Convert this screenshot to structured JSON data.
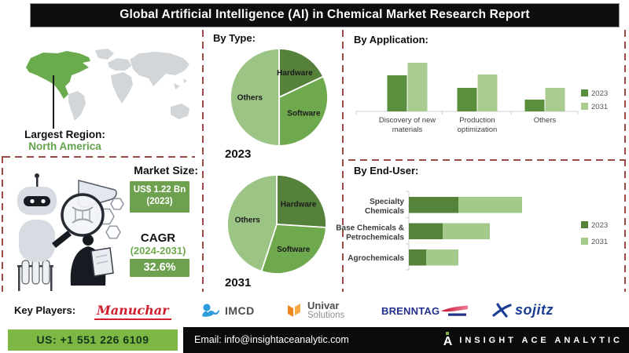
{
  "title": "Global Artificial Intelligence (AI) in Chemical Market Research Report",
  "region": {
    "label": "Largest Region:",
    "value": "North America"
  },
  "market": {
    "heading": "Market Size:",
    "size_value": "US$ 1.22 Bn",
    "size_year": "(2023)",
    "cagr_label": "CAGR",
    "cagr_period": "(2024-2031)",
    "cagr_value": "32.6%"
  },
  "sections": {
    "by_type": "By Type:",
    "by_application": "By Application:",
    "by_end_user": "By End-User:"
  },
  "chart_data": [
    {
      "id": "pie-2023",
      "type": "pie",
      "title": "2023",
      "labels": [
        "Hardware",
        "Software",
        "Others"
      ],
      "values": [
        18,
        32,
        50
      ],
      "unit": "% share (estimated from slice angles; no numbers printed on chart)",
      "colors": [
        "#55813A",
        "#6FA94E",
        "#9CC484"
      ]
    },
    {
      "id": "pie-2031",
      "type": "pie",
      "title": "2031",
      "labels": [
        "Hardware",
        "Software",
        "Others"
      ],
      "values": [
        26,
        29,
        45
      ],
      "unit": "% share (estimated from slice angles; no numbers printed on chart)",
      "colors": [
        "#55813A",
        "#6FA94E",
        "#9CC484"
      ]
    },
    {
      "id": "by-application",
      "type": "bar",
      "title": "By Application:",
      "categories": [
        "Discovery of new materials",
        "Production optimization",
        "Others"
      ],
      "series": [
        {
          "name": "2023",
          "color": "#5A8F3E",
          "values": [
            46,
            30,
            15
          ]
        },
        {
          "name": "2031",
          "color": "#A9CB90",
          "values": [
            62,
            47,
            30
          ]
        }
      ],
      "ylim": [
        0,
        65
      ],
      "ylabel": "",
      "value_note": "no numeric axis shown — heights are estimated relative units",
      "legend_position": "right",
      "gridlines": false
    },
    {
      "id": "by-end-user",
      "type": "stacked-bar-horizontal",
      "title": "By End-User:",
      "categories": [
        "Specialty Chemicals",
        "Base Chemicals & Petrochemicals",
        "Agrochemicals"
      ],
      "series": [
        {
          "name": "2023",
          "color": "#55833A",
          "values": [
            63,
            43,
            22
          ]
        },
        {
          "name": "2031",
          "color": "#A3C98B",
          "values": [
            81,
            60,
            41
          ]
        }
      ],
      "xlim": [
        0,
        150
      ],
      "value_note": "no numeric axis shown — lengths are estimated relative units",
      "legend_position": "right",
      "gridlines": false
    }
  ],
  "key_players": {
    "label": "Key Players:",
    "companies": [
      {
        "name": "Manuchar"
      },
      {
        "name": "IMCD"
      },
      {
        "name": "Univar Solutions",
        "lines": [
          "Univar",
          "Solutions"
        ]
      },
      {
        "name": "BRENNTAG"
      },
      {
        "name": "sojitz"
      }
    ]
  },
  "footer": {
    "phone": "US: +1 551 226 6109",
    "email": "Email: info@insightaceanalytic.com",
    "brand": "INSIGHT ACE ANALYTIC"
  },
  "colors": {
    "accent_green": "#6DA04F",
    "phone_green": "#7CB843",
    "dash_maroon": "#9C4A45",
    "map_highlight": "#6AAB4E",
    "map_base": "#D3D6D9",
    "title_bg": "#0E0E0E"
  }
}
